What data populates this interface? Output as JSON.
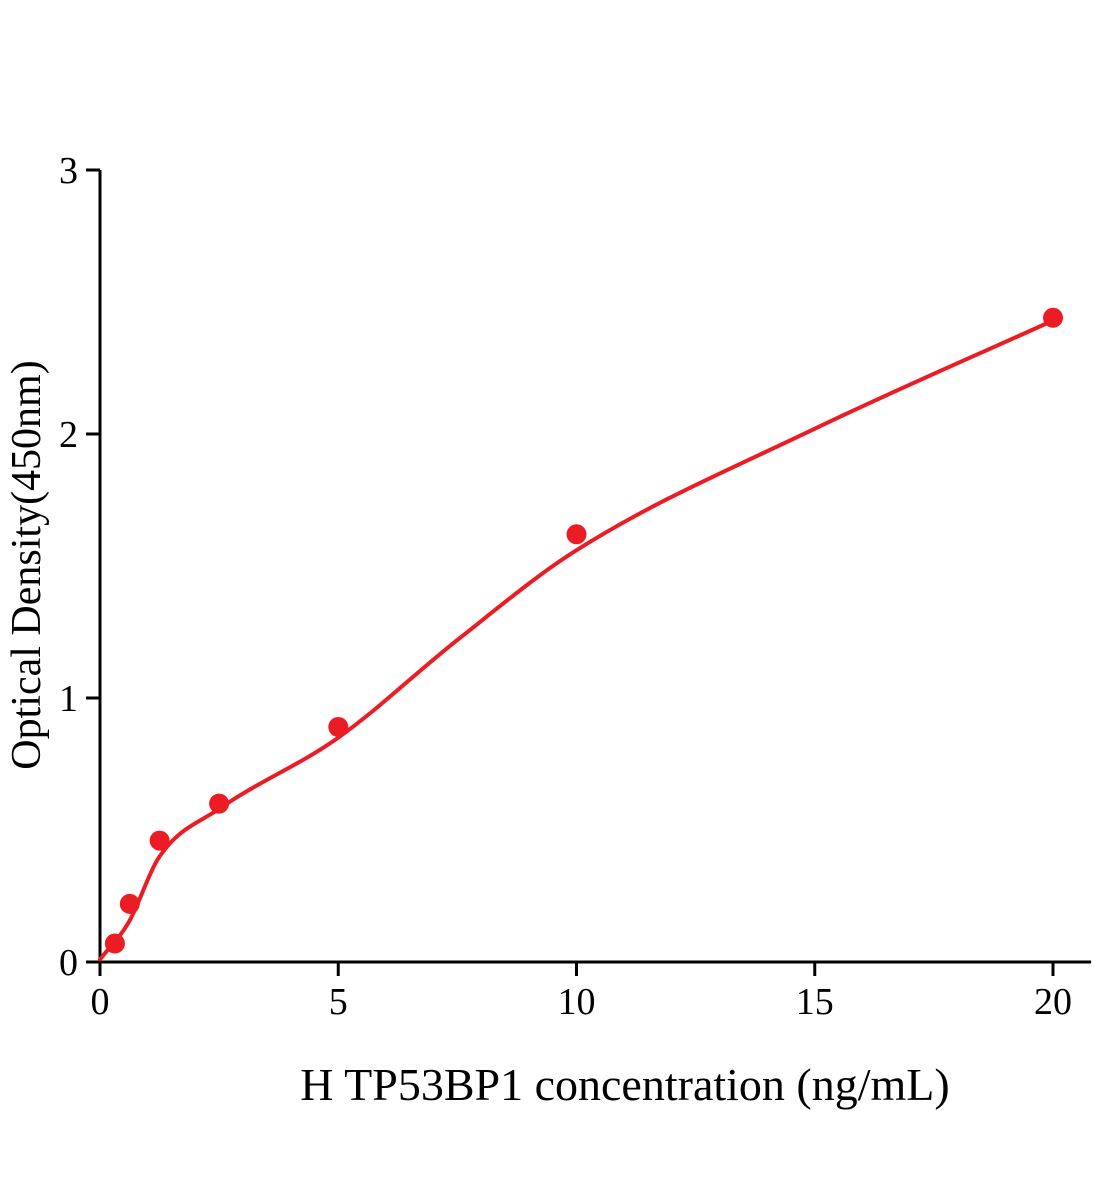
{
  "chart_data": {
    "type": "scatter",
    "title": "",
    "xlabel": "H TP53BP1 concentration (ng/mL)",
    "ylabel": "Optical Density(450nm)",
    "x": [
      0.3125,
      0.625,
      1.25,
      2.5,
      5,
      10,
      20
    ],
    "y": [
      0.07,
      0.22,
      0.46,
      0.6,
      0.89,
      1.62,
      2.44
    ],
    "fit_curve": {
      "x": [
        0,
        0.6,
        1.25,
        2.5,
        5,
        7.5,
        10,
        15,
        20
      ],
      "y": [
        0.01,
        0.15,
        0.4,
        0.58,
        0.85,
        1.22,
        1.56,
        2.02,
        2.43
      ]
    },
    "xlim": [
      0,
      20.8
    ],
    "ylim": [
      0,
      3
    ],
    "x_ticks": [
      0,
      5,
      10,
      15,
      20
    ],
    "y_ticks": [
      0,
      1,
      2,
      3
    ],
    "legend": null,
    "grid": false,
    "marker_color": "#ec1c24",
    "line_color": "#ec1c24",
    "axis_color": "#000000"
  }
}
